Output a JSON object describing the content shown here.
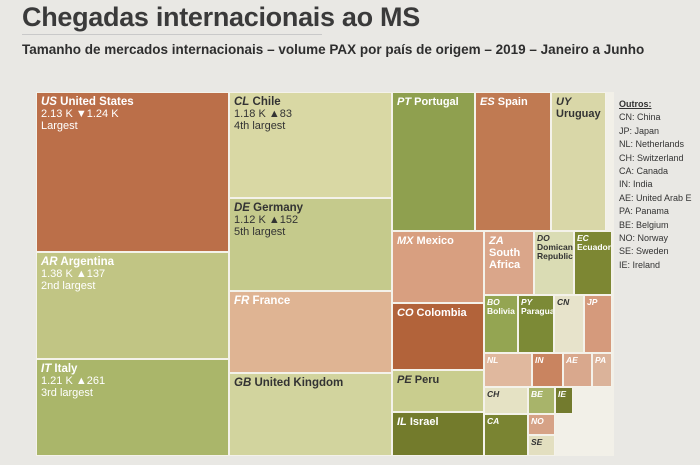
{
  "title": "Chegadas internacionais ao MS",
  "subtitle": "Tamanho de mercados internacionais – volume PAX por país de origem – 2019 – Janeiro a Junho",
  "chart_data": {
    "type": "treemap",
    "measure": "volume PAX",
    "colors": {
      "dark": "#b86840",
      "light": "#e6dfae",
      "green": "#8a9a4c"
    },
    "tiles": [
      {
        "code": "US",
        "name": "United States",
        "value": "2.13 K",
        "change": "▼1.24 K",
        "rank": "Largest",
        "color": "#bb6f49"
      },
      {
        "code": "AR",
        "name": "Argentina",
        "value": "1.38 K",
        "change": "▲137",
        "rank": "2nd largest",
        "color": "#c1c584"
      },
      {
        "code": "IT",
        "name": "Italy",
        "value": "1.21 K",
        "change": "▲261",
        "rank": "3rd largest",
        "color": "#aab66a"
      },
      {
        "code": "CL",
        "name": "Chile",
        "value": "1.18 K",
        "change": "▲83",
        "rank": "4th largest",
        "color": "#d9d8a4"
      },
      {
        "code": "DE",
        "name": "Germany",
        "value": "1.12 K",
        "change": "▲152",
        "rank": "5th largest",
        "color": "#c5ca8c"
      },
      {
        "code": "FR",
        "name": "France",
        "color": "#dfb493"
      },
      {
        "code": "GB",
        "name": "United Kingdom",
        "color": "#d2d49e"
      },
      {
        "code": "PT",
        "name": "Portugal",
        "color": "#8fa04f"
      },
      {
        "code": "ES",
        "name": "Spain",
        "color": "#c07a52"
      },
      {
        "code": "UY",
        "name": "Uruguay",
        "color": "#d9d7a8"
      },
      {
        "code": "MX",
        "name": "Mexico",
        "color": "#d89f80"
      },
      {
        "code": "CO",
        "name": "Colombia",
        "color": "#b2633a"
      },
      {
        "code": "PE",
        "name": "Peru",
        "color": "#c9cd8e"
      },
      {
        "code": "IL",
        "name": "Israel",
        "color": "#737b2c"
      },
      {
        "code": "ZA",
        "name": "South Africa",
        "color": "#daa68a"
      },
      {
        "code": "DO",
        "name": "Domican Republic",
        "color": "#dadcb4"
      },
      {
        "code": "EC",
        "name": "Ecuador",
        "color": "#7d8733"
      },
      {
        "code": "BO",
        "name": "Bolivia",
        "color": "#94a552"
      },
      {
        "code": "PY",
        "name": "Paraguay",
        "color": "#7c8a36"
      },
      {
        "code": "CN",
        "name": "",
        "color": "#e7e3cb"
      },
      {
        "code": "JP",
        "name": "",
        "color": "#d59a7c"
      },
      {
        "code": "NL",
        "name": "",
        "color": "#e0b89e"
      },
      {
        "code": "IN",
        "name": "",
        "color": "#c98460"
      },
      {
        "code": "AE",
        "name": "",
        "color": "#d9a88d"
      },
      {
        "code": "PA",
        "name": "",
        "color": "#dbb39a"
      },
      {
        "code": "CH",
        "name": "",
        "color": "#e5e2c4"
      },
      {
        "code": "BE",
        "name": "",
        "color": "#a8b46a"
      },
      {
        "code": "IE",
        "name": "",
        "color": "#737b2e"
      },
      {
        "code": "CA",
        "name": "",
        "color": "#7a8432"
      },
      {
        "code": "NO",
        "name": "",
        "color": "#d6a286"
      },
      {
        "code": "SE",
        "name": "",
        "color": "#e3dfc0"
      }
    ]
  },
  "outros": {
    "title": "Outros:",
    "items": [
      "CN: China",
      "JP: Japan",
      "NL: Netherlands",
      "CH: Switzerland",
      "CA: Canada",
      "IN: India",
      "AE: United Arab E",
      "PA: Panama",
      "BE: Belgium",
      "NO: Norway",
      "SE: Sweden",
      "IE: Ireland"
    ]
  }
}
